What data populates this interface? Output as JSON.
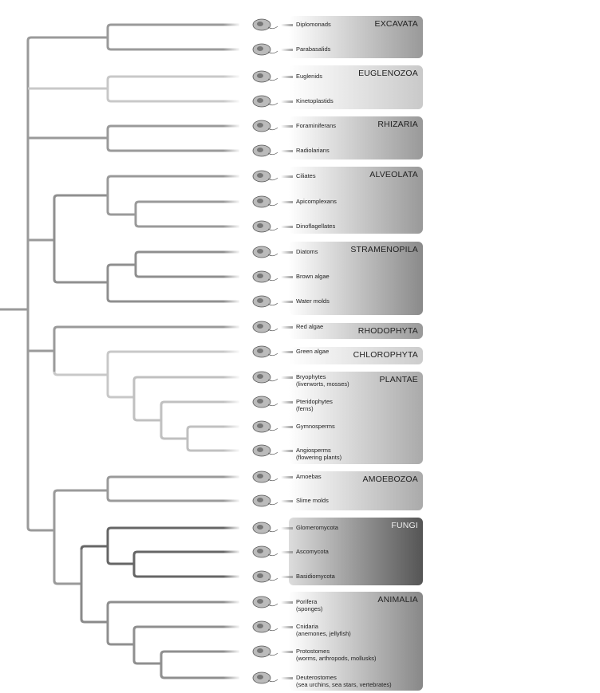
{
  "groups": [
    {
      "name": "EXCAVATA",
      "line": "#9a9a9a",
      "shade": "#999999",
      "light": "#ffffff",
      "taxa": [
        {
          "label": "Diplomonads"
        },
        {
          "label": "Parabasalids"
        }
      ]
    },
    {
      "name": "EUGLENOZOA",
      "line": "#c8c8c8",
      "shade": "#c9c9c9",
      "light": "#ffffff",
      "taxa": [
        {
          "label": "Euglenids"
        },
        {
          "label": "Kinetoplastids"
        }
      ]
    },
    {
      "name": "RHIZARIA",
      "line": "#9a9a9a",
      "shade": "#999999",
      "light": "#ffffff",
      "taxa": [
        {
          "label": "Foraminiferans"
        },
        {
          "label": "Radiolarians"
        }
      ]
    },
    {
      "name": "ALVEOLATA",
      "line": "#9a9a9a",
      "shade": "#999999",
      "light": "#ffffff",
      "taxa": [
        {
          "label": "Ciliates"
        },
        {
          "label": "Apicomplexans"
        },
        {
          "label": "Dinoflagellates"
        }
      ]
    },
    {
      "name": "STRAMENOPILA",
      "line": "#8f8f8f",
      "shade": "#8a8a8a",
      "light": "#ffffff",
      "taxa": [
        {
          "label": "Diatoms"
        },
        {
          "label": "Brown algae"
        },
        {
          "label": "Water molds"
        }
      ]
    },
    {
      "name": "RHODOPHYTA",
      "line": "#9a9a9a",
      "shade": "#999999",
      "light": "#ffffff",
      "taxa": [
        {
          "label": "Red algae"
        }
      ]
    },
    {
      "name": "CHLOROPHYTA",
      "line": "#c8c8c8",
      "shade": "#cccccc",
      "light": "#ffffff",
      "taxa": [
        {
          "label": "Green algae"
        }
      ]
    },
    {
      "name": "PLANTAE",
      "line": "#c0c0c0",
      "shade": "#aaaaaa",
      "light": "#ffffff",
      "taxa": [
        {
          "label": "Bryophytes",
          "sub": "(liverworts, mosses)"
        },
        {
          "label": "Pteridophytes",
          "sub": "(ferns)"
        },
        {
          "label": "Gymnosperms"
        },
        {
          "label": "Angiosperms",
          "sub": "(flowering plants)"
        }
      ]
    },
    {
      "name": "AMOEBOZOA",
      "line": "#9a9a9a",
      "shade": "#aaaaaa",
      "light": "#ffffff",
      "taxa": [
        {
          "label": "Amoebas"
        },
        {
          "label": "Slime molds"
        }
      ]
    },
    {
      "name": "FUNGI",
      "line": "#666666",
      "shade": "#555555",
      "light": "#dddddd",
      "taxa": [
        {
          "label": "Glomeromycota"
        },
        {
          "label": "Ascomycota"
        },
        {
          "label": "Basidiomycota"
        }
      ]
    },
    {
      "name": "ANIMALIA",
      "line": "#8f8f8f",
      "shade": "#888888",
      "light": "#ffffff",
      "taxa": [
        {
          "label": "Porifera",
          "sub": "(sponges)"
        },
        {
          "label": "Cnidaria",
          "sub": "(anemones, jellyfish)"
        },
        {
          "label": "Protostomes",
          "sub": "(worms, arthropods, mollusks)"
        },
        {
          "label": "Deuterostomes",
          "sub": "(sea urchins, sea stars, vertebrates)"
        }
      ]
    }
  ]
}
